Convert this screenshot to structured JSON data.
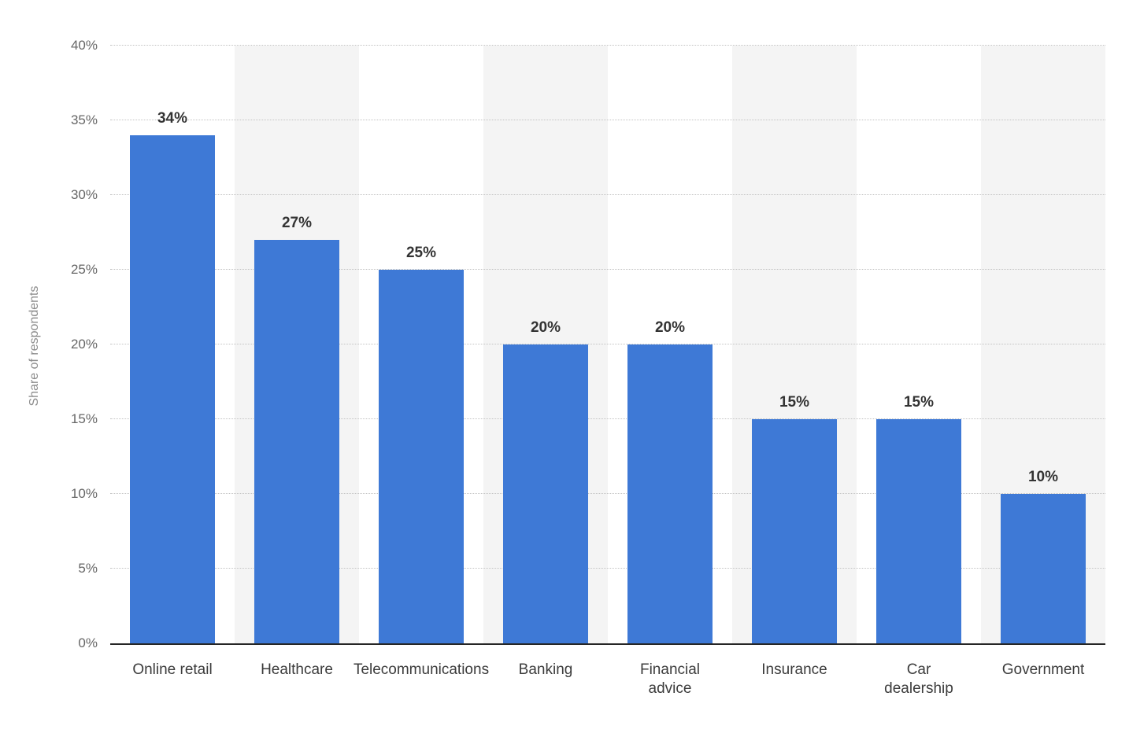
{
  "chart_data": {
    "type": "bar",
    "title": "",
    "categories": [
      "Online retail",
      "Healthcare",
      "Telecommunications",
      "Banking",
      "Financial\nadvice",
      "Insurance",
      "Car\ndealership",
      "Government"
    ],
    "values": [
      34,
      27,
      25,
      20,
      20,
      15,
      15,
      10
    ],
    "value_labels": [
      "34%",
      "27%",
      "25%",
      "20%",
      "20%",
      "15%",
      "15%",
      "10%"
    ],
    "xlabel": "",
    "ylabel": "Share of respondents",
    "ylim": [
      0,
      40
    ],
    "yticks": [
      0,
      5,
      10,
      15,
      20,
      25,
      30,
      35,
      40
    ],
    "ytick_labels": [
      "0%",
      "5%",
      "10%",
      "15%",
      "20%",
      "25%",
      "30%",
      "35%",
      "40%"
    ],
    "grid": "horizontal-dotted",
    "legend": "none",
    "bar_color": "#3e79d6",
    "band_colors": [
      "#ffffff",
      "#f4f4f4"
    ],
    "axis_color": "#262626"
  }
}
